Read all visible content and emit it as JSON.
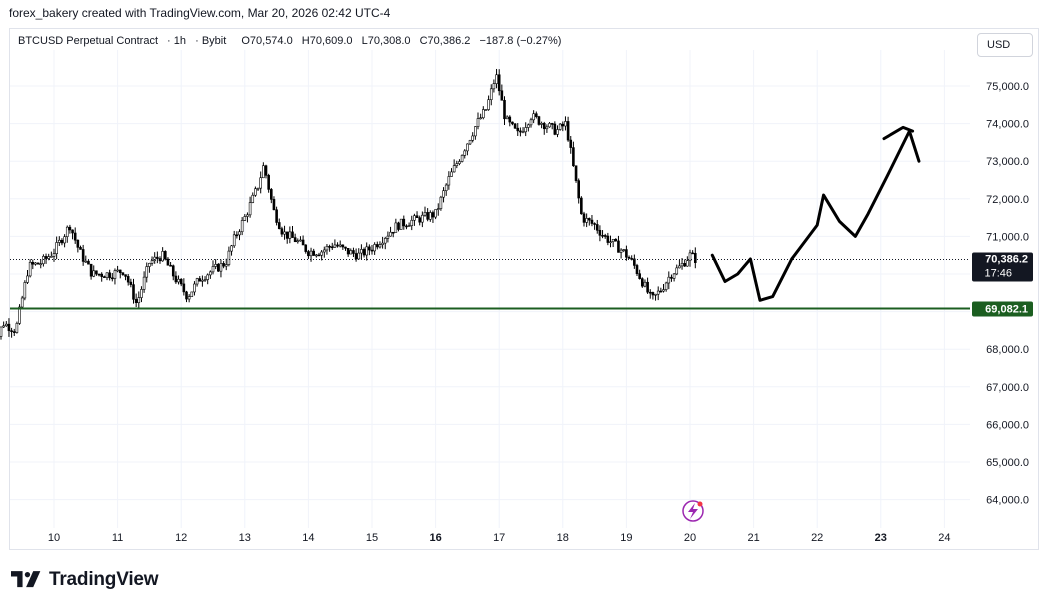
{
  "caption": "forex_bakery created with TradingView.com, Mar 20, 2026 02:42 UTC-4",
  "symbol": {
    "name": "BTCUSD Perpetual Contract",
    "interval": "1h",
    "exchange": "Bybit",
    "open": "O70,574.0",
    "high": "H70,609.0",
    "low": "L70,308.0",
    "close": "C70,386.2",
    "change": "−187.8 (−0.27%)"
  },
  "currency_button": "USD",
  "brand": "TradingView",
  "icons": {
    "brand": "tradingview-logo-icon",
    "lightning": "lightning-icon"
  },
  "colors": {
    "up": "#089981",
    "down": "#f23645",
    "candle": "#000000",
    "support_line": "#1b5e20",
    "support_label_bg": "#1b5e20",
    "last_price_bg": "#131722",
    "drawing": "#000000",
    "lightning": "#9c27b0",
    "grid": "#f0f3fa"
  },
  "chart_data": {
    "type": "candlestick",
    "y_axis": {
      "ticks": [
        "75,000.0",
        "74,000.0",
        "73,000.0",
        "72,000.0",
        "71,000.0",
        "68,000.0",
        "67,000.0",
        "66,000.0",
        "65,000.0",
        "64,000.0"
      ],
      "tick_values": [
        75000,
        74000,
        73000,
        72000,
        71000,
        68000,
        67000,
        66000,
        65000,
        64000
      ],
      "range": [
        63300,
        76000
      ]
    },
    "x_axis": {
      "ticks": [
        "10",
        "11",
        "12",
        "13",
        "14",
        "15",
        "16",
        "17",
        "18",
        "19",
        "20",
        "21",
        "22",
        "23",
        "24"
      ],
      "bold_ticks": [
        "16",
        "23"
      ]
    },
    "price_path": [
      [
        9.0,
        67800
      ],
      [
        9.2,
        68700
      ],
      [
        9.4,
        68500
      ],
      [
        9.6,
        70200
      ],
      [
        9.8,
        70300
      ],
      [
        10.0,
        70600
      ],
      [
        10.25,
        71300
      ],
      [
        10.4,
        70600
      ],
      [
        10.6,
        70000
      ],
      [
        10.9,
        70000
      ],
      [
        11.1,
        70100
      ],
      [
        11.3,
        69200
      ],
      [
        11.5,
        70300
      ],
      [
        11.7,
        70500
      ],
      [
        11.9,
        69900
      ],
      [
        12.1,
        69400
      ],
      [
        12.3,
        69900
      ],
      [
        12.5,
        70100
      ],
      [
        12.7,
        70300
      ],
      [
        12.85,
        71000
      ],
      [
        13.0,
        71500
      ],
      [
        13.2,
        72300
      ],
      [
        13.3,
        72900
      ],
      [
        13.45,
        71700
      ],
      [
        13.6,
        71100
      ],
      [
        13.8,
        70900
      ],
      [
        14.0,
        70600
      ],
      [
        14.2,
        70600
      ],
      [
        14.4,
        70800
      ],
      [
        14.6,
        70600
      ],
      [
        14.8,
        70500
      ],
      [
        15.0,
        70700
      ],
      [
        15.2,
        71000
      ],
      [
        15.4,
        71300
      ],
      [
        15.6,
        71400
      ],
      [
        15.8,
        71500
      ],
      [
        16.0,
        71600
      ],
      [
        16.2,
        72500
      ],
      [
        16.35,
        73000
      ],
      [
        16.5,
        73500
      ],
      [
        16.65,
        74000
      ],
      [
        16.8,
        74400
      ],
      [
        16.95,
        75300
      ],
      [
        17.1,
        74100
      ],
      [
        17.3,
        73700
      ],
      [
        17.5,
        74200
      ],
      [
        17.7,
        74000
      ],
      [
        17.9,
        73800
      ],
      [
        18.05,
        74000
      ],
      [
        18.15,
        73000
      ],
      [
        18.3,
        71500
      ],
      [
        18.5,
        71300
      ],
      [
        18.65,
        71000
      ],
      [
        18.8,
        70800
      ],
      [
        18.95,
        70600
      ],
      [
        19.1,
        70300
      ],
      [
        19.25,
        69800
      ],
      [
        19.4,
        69300
      ],
      [
        19.55,
        69600
      ],
      [
        19.7,
        70000
      ],
      [
        19.85,
        70200
      ],
      [
        20.0,
        70500
      ],
      [
        20.1,
        70386.2
      ]
    ],
    "last_price": 70386.2,
    "last_price_label": "70,386.2",
    "countdown": "17:46",
    "horizontal_lines": [
      {
        "value": 69082.1,
        "label": "69,082.1"
      }
    ],
    "drawings": [
      {
        "type": "polyline",
        "points": [
          [
            20.35,
            70500
          ],
          [
            20.55,
            69800
          ],
          [
            20.75,
            70000
          ],
          [
            20.95,
            70400
          ],
          [
            21.1,
            69300
          ],
          [
            21.3,
            69400
          ],
          [
            21.6,
            70400
          ],
          [
            22.0,
            71300
          ],
          [
            22.1,
            72100
          ],
          [
            22.35,
            71400
          ],
          [
            22.6,
            71000
          ],
          [
            22.8,
            71600
          ],
          [
            23.1,
            72600
          ],
          [
            23.45,
            73800
          ],
          [
            23.6,
            73000
          ]
        ]
      },
      {
        "type": "polyline",
        "points": [
          [
            23.05,
            73600
          ],
          [
            23.35,
            73900
          ],
          [
            23.5,
            73800
          ]
        ]
      }
    ]
  }
}
